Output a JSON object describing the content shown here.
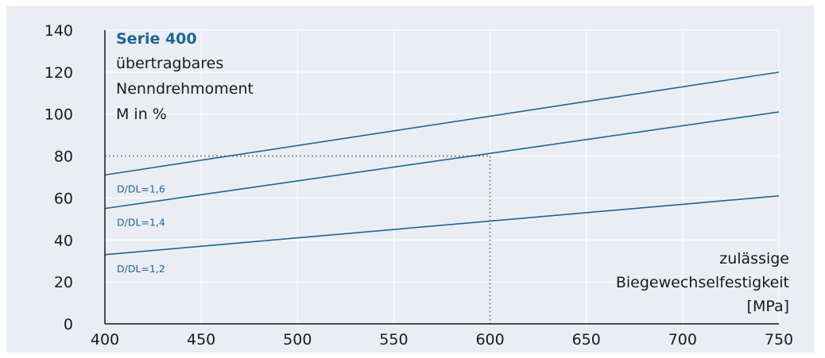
{
  "chart_data": {
    "type": "line",
    "title": "Serie 400",
    "ylabel_lines": [
      "übertragbares",
      "Nenndrehmoment",
      "M in %"
    ],
    "xlabel_lines": [
      "zulässige",
      "Biegewechselfestigkeit",
      "[MPa]"
    ],
    "xlim": [
      400,
      750
    ],
    "ylim": [
      0,
      140
    ],
    "x_ticks": [
      400,
      450,
      500,
      550,
      600,
      650,
      700,
      750
    ],
    "y_ticks": [
      0,
      20,
      40,
      60,
      80,
      100,
      120,
      140
    ],
    "grid": true,
    "series": [
      {
        "name": "D/DL=1,6",
        "x": [
          400,
          750
        ],
        "y": [
          71,
          120
        ]
      },
      {
        "name": "D/DL=1,4",
        "x": [
          400,
          750
        ],
        "y": [
          55,
          101
        ]
      },
      {
        "name": "D/DL=1,2",
        "x": [
          400,
          750
        ],
        "y": [
          33,
          61
        ]
      }
    ],
    "reference_lines": [
      {
        "x": 600,
        "y": 80
      }
    ],
    "colors": {
      "background": "#eaeef4",
      "grid": "#ffffff",
      "series": "#1d6594",
      "title": "#1d6594",
      "axis": "#1a1a1a",
      "reference": "#8c8c8c"
    }
  }
}
